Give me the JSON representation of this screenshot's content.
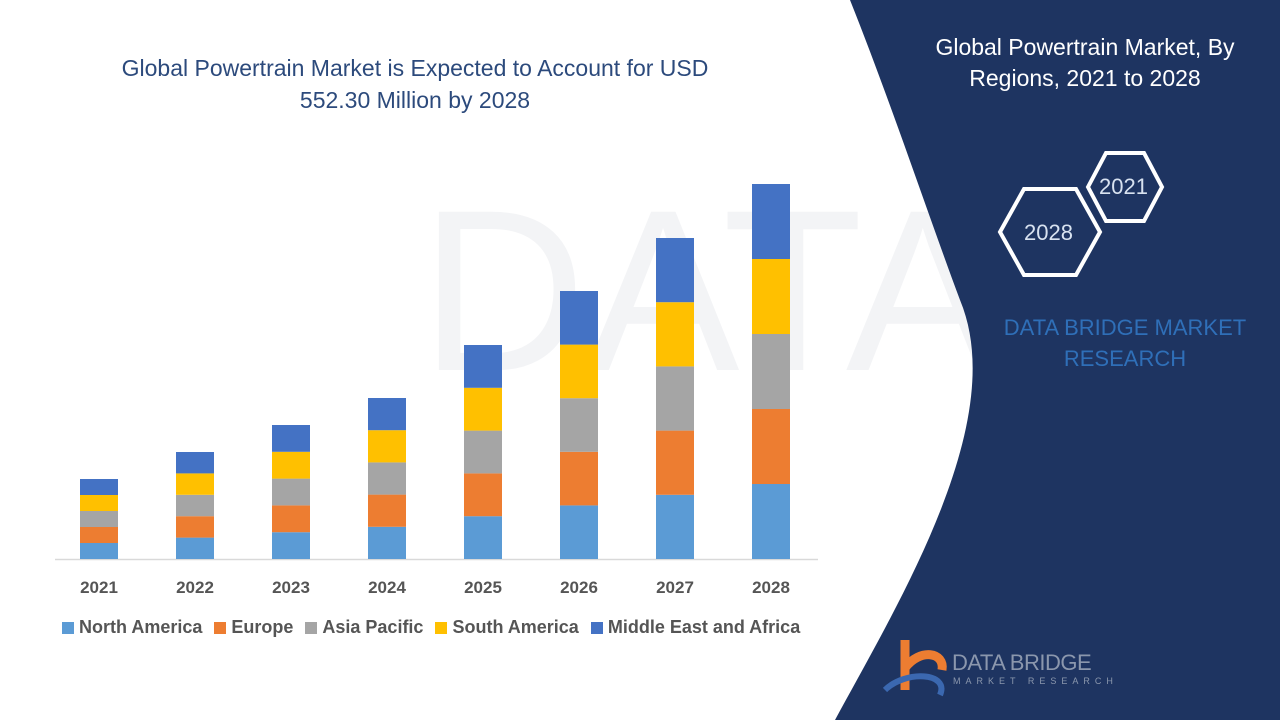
{
  "title": "Global Powertrain Market is Expected to Account for USD 552.30 Million by 2028",
  "side_panel": {
    "title": "Global Powertrain Market, By Regions, 2021 to 2028",
    "hex_labels": [
      "2021",
      "2028"
    ],
    "brand": "DATA BRIDGE MARKET RESEARCH",
    "logo_text": "DATA BRIDGE",
    "logo_subtext": "MARKET RESEARCH"
  },
  "colors": {
    "panel": "#1e3461",
    "title": "#2c4a7c"
  },
  "chart_data": {
    "type": "bar",
    "stacked": true,
    "title": "Global Powertrain Market is Expected to Account for USD 552.30 Million by 2028",
    "xlabel": "",
    "ylabel": "",
    "y_axis_shown": false,
    "grid": false,
    "legend_position": "bottom",
    "categories": [
      "2021",
      "2022",
      "2023",
      "2024",
      "2025",
      "2026",
      "2027",
      "2028"
    ],
    "series": [
      {
        "name": "North America",
        "color": "#5b9bd5",
        "values": [
          16,
          21.4,
          26.8,
          32.2,
          42.8,
          53.6,
          64.2,
          75
        ]
      },
      {
        "name": "Europe",
        "color": "#ed7d31",
        "values": [
          16,
          21.4,
          26.8,
          32.2,
          42.8,
          53.6,
          64.2,
          75
        ]
      },
      {
        "name": "Asia Pacific",
        "color": "#a5a5a5",
        "values": [
          16,
          21.4,
          26.8,
          32.2,
          42.8,
          53.6,
          64.2,
          75
        ]
      },
      {
        "name": "South America",
        "color": "#ffc000",
        "values": [
          16,
          21.4,
          26.8,
          32.2,
          42.8,
          53.6,
          64.2,
          75
        ]
      },
      {
        "name": "Middle East and Africa",
        "color": "#4472c4",
        "values": [
          16,
          21.4,
          26.8,
          32.2,
          42.8,
          53.6,
          64.2,
          75
        ]
      }
    ]
  }
}
